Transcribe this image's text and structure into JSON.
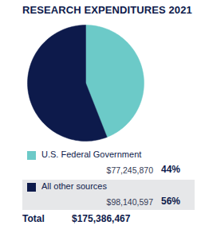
{
  "chart_data": {
    "type": "pie",
    "title": "RESEARCH EXPENDITURES 2021",
    "categories": [
      "U.S. Federal Government",
      "All other sources"
    ],
    "values": [
      77245870,
      98140597
    ],
    "value_labels": [
      "$77,245,870",
      "$98,140,597"
    ],
    "percents": [
      44,
      56
    ],
    "percent_labels": [
      "44%",
      "56%"
    ],
    "colors": [
      "#6ccac8",
      "#0d1a4b"
    ],
    "total": {
      "value": 175386467,
      "label": "$175,386,467",
      "name": "Total"
    },
    "legend": "bottom"
  }
}
